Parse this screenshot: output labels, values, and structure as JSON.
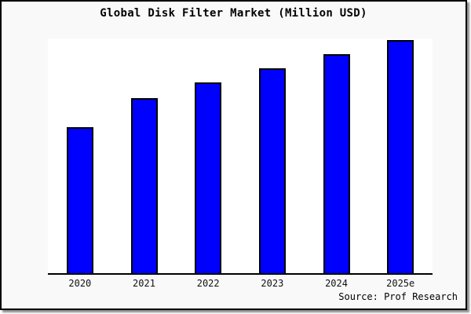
{
  "chart_data": {
    "type": "bar",
    "title": "Global Disk Filter Market (Million USD)",
    "categories": [
      "2020",
      "2021",
      "2022",
      "2023",
      "2024",
      "2025e"
    ],
    "values": [
      186,
      223,
      243,
      261,
      279,
      297
    ],
    "values_note": "y-axis is unlabeled in the figure; values are relative heights (max bar = 297 of plot height 299)",
    "xlabel": "",
    "ylabel": "",
    "ylim": [
      0,
      299
    ],
    "grid": false,
    "legend_position": "none",
    "bar_color": "#0000fe",
    "bar_border_color": "#000000",
    "plot_background": "#ffffff",
    "card_background": "#f9f9f9",
    "source": "Source: Prof Research"
  }
}
